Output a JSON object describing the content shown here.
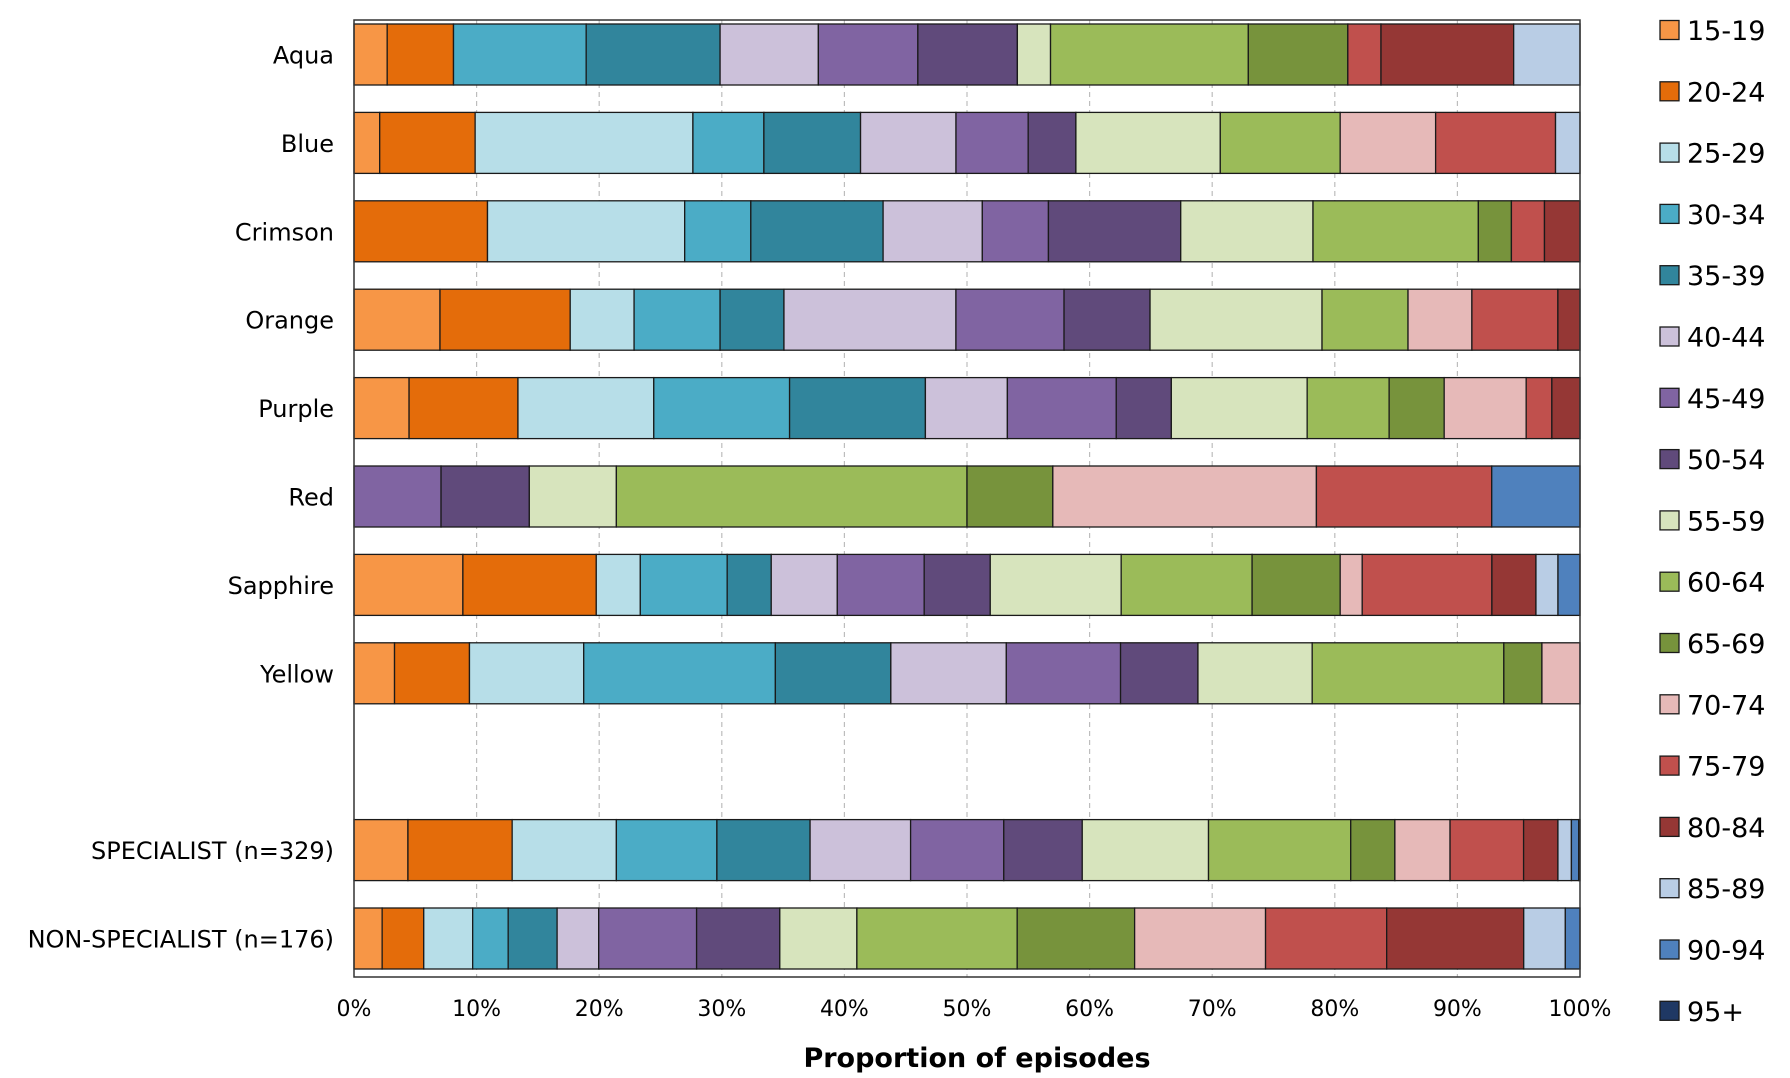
{
  "chart_data": {
    "type": "bar",
    "orientation": "horizontal",
    "stacked": "percent",
    "xlabel": "Proportion of episodes",
    "xlim": [
      0,
      100
    ],
    "xticks": [
      "0%",
      "10%",
      "20%",
      "30%",
      "40%",
      "50%",
      "60%",
      "70%",
      "80%",
      "90%",
      "100%"
    ],
    "grid": "vertical dashed",
    "legend_position": "right",
    "categories": [
      "Aqua",
      "Blue",
      "Crimson",
      "Orange",
      "Purple",
      "Red",
      "Sapphire",
      "Yellow",
      "",
      "SPECIALIST (n=329)",
      "NON-SPECIALIST (n=176)"
    ],
    "series": [
      {
        "name": "15-19",
        "color": "#f79646",
        "values": [
          2.7,
          2.1,
          0,
          7.0,
          4.5,
          0,
          8.9,
          3.3,
          null,
          4.4,
          2.3
        ]
      },
      {
        "name": "20-24",
        "color": "#e46c0a",
        "values": [
          5.4,
          7.8,
          10.9,
          10.6,
          8.9,
          0,
          10.9,
          6.1,
          null,
          8.5,
          3.4
        ]
      },
      {
        "name": "25-29",
        "color": "#b7dee8",
        "values": [
          0,
          17.8,
          16.1,
          5.2,
          11.1,
          0,
          3.6,
          9.3,
          null,
          8.5,
          4.0
        ]
      },
      {
        "name": "30-34",
        "color": "#4bacc6",
        "values": [
          10.8,
          5.8,
          5.4,
          7.0,
          11.1,
          0,
          7.1,
          15.6,
          null,
          8.2,
          2.9
        ]
      },
      {
        "name": "35-39",
        "color": "#31859c",
        "values": [
          10.9,
          7.9,
          10.8,
          5.2,
          11.1,
          0,
          3.6,
          9.4,
          null,
          7.6,
          4.0
        ]
      },
      {
        "name": "40-44",
        "color": "#ccc1da",
        "values": [
          8.0,
          7.8,
          8.1,
          14.0,
          6.7,
          0,
          5.4,
          9.4,
          null,
          8.2,
          3.4
        ]
      },
      {
        "name": "45-49",
        "color": "#8064a2",
        "values": [
          8.1,
          5.9,
          5.4,
          8.8,
          8.9,
          7.1,
          7.1,
          9.3,
          null,
          7.6,
          8.0
        ]
      },
      {
        "name": "50-54",
        "color": "#604a7b",
        "values": [
          8.1,
          3.9,
          10.8,
          7.0,
          4.5,
          7.2,
          5.4,
          6.3,
          null,
          6.4,
          6.8
        ]
      },
      {
        "name": "55-59",
        "color": "#d7e4bd",
        "values": [
          2.7,
          11.8,
          10.8,
          14.0,
          11.1,
          7.1,
          10.7,
          9.3,
          null,
          10.3,
          6.3
        ]
      },
      {
        "name": "60-64",
        "color": "#9bbb59",
        "values": [
          16.1,
          9.8,
          13.5,
          7.0,
          6.7,
          28.6,
          10.7,
          15.6,
          null,
          11.6,
          13.1
        ]
      },
      {
        "name": "65-69",
        "color": "#77933c",
        "values": [
          8.1,
          0,
          2.7,
          0,
          4.5,
          7.0,
          7.2,
          3.1,
          null,
          3.6,
          9.6
        ]
      },
      {
        "name": "70-74",
        "color": "#e6b9b8",
        "values": [
          0,
          7.8,
          0,
          5.2,
          6.7,
          21.5,
          1.8,
          3.1,
          null,
          4.5,
          10.7
        ]
      },
      {
        "name": "75-79",
        "color": "#c0504d",
        "values": [
          2.7,
          9.8,
          2.7,
          7.0,
          2.1,
          14.3,
          10.6,
          0,
          null,
          6.0,
          9.9
        ]
      },
      {
        "name": "80-84",
        "color": "#953735",
        "values": [
          10.8,
          0,
          2.9,
          1.8,
          2.3,
          0,
          3.6,
          0,
          null,
          2.8,
          11.2
        ]
      },
      {
        "name": "85-89",
        "color": "#b9cde5",
        "values": [
          5.4,
          2.0,
          0,
          0,
          0,
          0,
          1.8,
          0,
          null,
          1.1,
          3.4
        ]
      },
      {
        "name": "90-94",
        "color": "#4f81bd",
        "values": [
          0,
          0,
          0,
          0,
          0,
          7.2,
          1.8,
          0,
          null,
          0.6,
          1.2
        ]
      },
      {
        "name": "95+",
        "color": "#1f3864",
        "values": [
          0,
          0,
          0,
          0,
          0,
          0,
          0,
          0,
          null,
          0.1,
          0
        ]
      }
    ]
  }
}
